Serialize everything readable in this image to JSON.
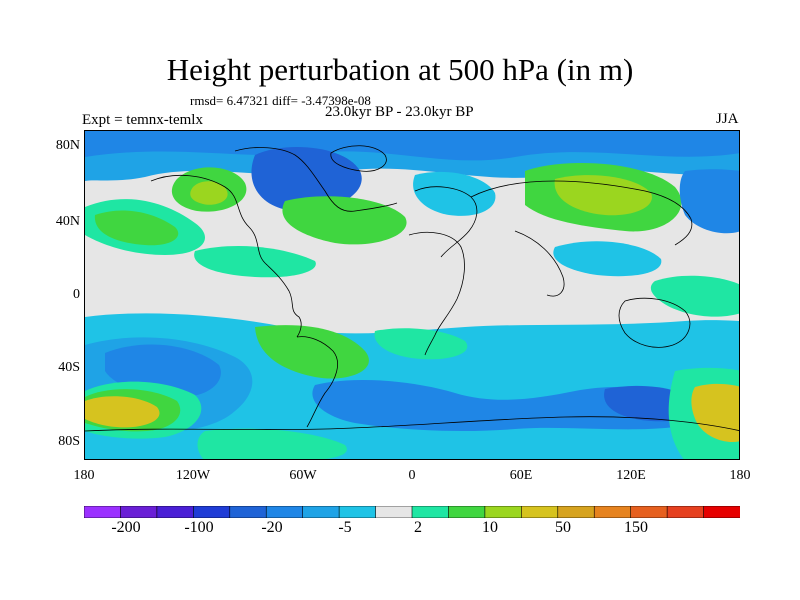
{
  "figure": {
    "title": "Height perturbation at 500 hPa (in m)",
    "stats": "rmsd= 6.47321 diff= -3.47398e-08",
    "period": "23.0kyr BP - 23.0kyr BP",
    "experiment": "Expt = temnx-temlx",
    "season": "JJA"
  },
  "map": {
    "projection": "cylindrical equidistant",
    "lat_ticks": [
      "80N",
      "40N",
      "0",
      "40S",
      "80S"
    ],
    "lon_ticks": [
      "180",
      "120W",
      "60W",
      "0",
      "60E",
      "120E",
      "180"
    ],
    "background_color": "#e6e6e6",
    "coastline_color": "#000000"
  },
  "colorbar": {
    "colors": [
      "#9b30ff",
      "#6a1fd6",
      "#4a1fd6",
      "#1f3cd6",
      "#1f63d6",
      "#1f86e6",
      "#1fa3e6",
      "#1fc3e6",
      "#e6e6e6",
      "#1fe6a3",
      "#40d640",
      "#9bd61f",
      "#d6c31f",
      "#d6a31f",
      "#e6831f",
      "#e6601f",
      "#e6401f",
      "#e60000"
    ],
    "labels": [
      "-200",
      "-100",
      "-20",
      "-5",
      "2",
      "10",
      "50",
      "150"
    ]
  }
}
